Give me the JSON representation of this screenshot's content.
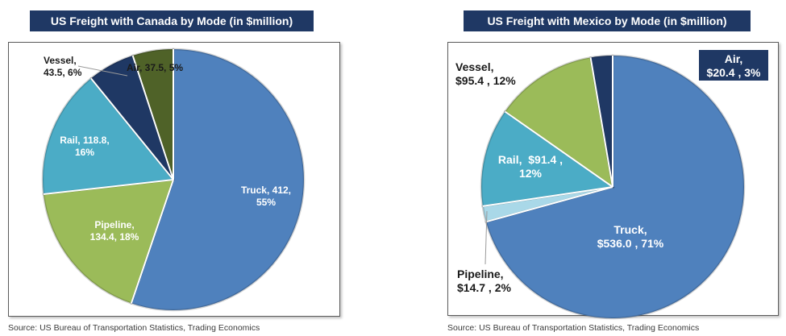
{
  "charts": [
    {
      "title": "US Freight with Canada by Mode (in $million)",
      "source": "Source: US Bureau of Transportation Statistics, Trading Economics"
    },
    {
      "title": "US Freight with Mexico by Mode (in $million)",
      "source": "Source: US Bureau of Transportation Statistics, Trading Economics"
    }
  ],
  "chart_data": [
    {
      "type": "pie",
      "title": "US Freight with Canada by Mode (in $million)",
      "slices": [
        {
          "name": "Truck",
          "value": 412,
          "percent": 55,
          "color": "#4f81bd",
          "label_lines": [
            "Truck, 412,",
            "55%"
          ]
        },
        {
          "name": "Pipeline",
          "value": 134.4,
          "percent": 18,
          "color": "#9bbb59",
          "label_lines": [
            "Pipeline,",
            "134.4, 18%"
          ]
        },
        {
          "name": "Rail",
          "value": 118.8,
          "percent": 16,
          "color": "#4bacc6",
          "label_lines": [
            "Rail, 118.8,",
            "16%"
          ]
        },
        {
          "name": "Vessel",
          "value": 43.5,
          "percent": 6,
          "color": "#1f3864",
          "label_lines": [
            "Vessel,",
            "43.5, 6%"
          ]
        },
        {
          "name": "Air",
          "value": 37.5,
          "percent": 5,
          "color": "#4f6228",
          "label_lines": [
            "Air, 37.5, 5%"
          ]
        }
      ]
    },
    {
      "type": "pie",
      "title": "US Freight with Mexico by Mode (in $million)",
      "slices": [
        {
          "name": "Truck",
          "value": 536.0,
          "percent": 71,
          "color": "#4f81bd",
          "label_lines": [
            "Truck,",
            "$536.0 , 71%"
          ]
        },
        {
          "name": "Pipeline",
          "value": 14.7,
          "percent": 2,
          "color": "#a9d8e8",
          "label_lines": [
            "Pipeline,",
            "$14.7 , 2%"
          ]
        },
        {
          "name": "Rail",
          "value": 91.4,
          "percent": 12,
          "color": "#4bacc6",
          "label_lines": [
            "Rail,  $91.4 ,",
            "12%"
          ]
        },
        {
          "name": "Vessel",
          "value": 95.4,
          "percent": 12,
          "color": "#9bbb59",
          "label_lines": [
            "Vessel,",
            "$95.4 , 12%"
          ]
        },
        {
          "name": "Air",
          "value": 20.4,
          "percent": 3,
          "color": "#1f3864",
          "label_lines": [
            "Air,",
            "$20.4 , 3%"
          ]
        }
      ]
    }
  ]
}
